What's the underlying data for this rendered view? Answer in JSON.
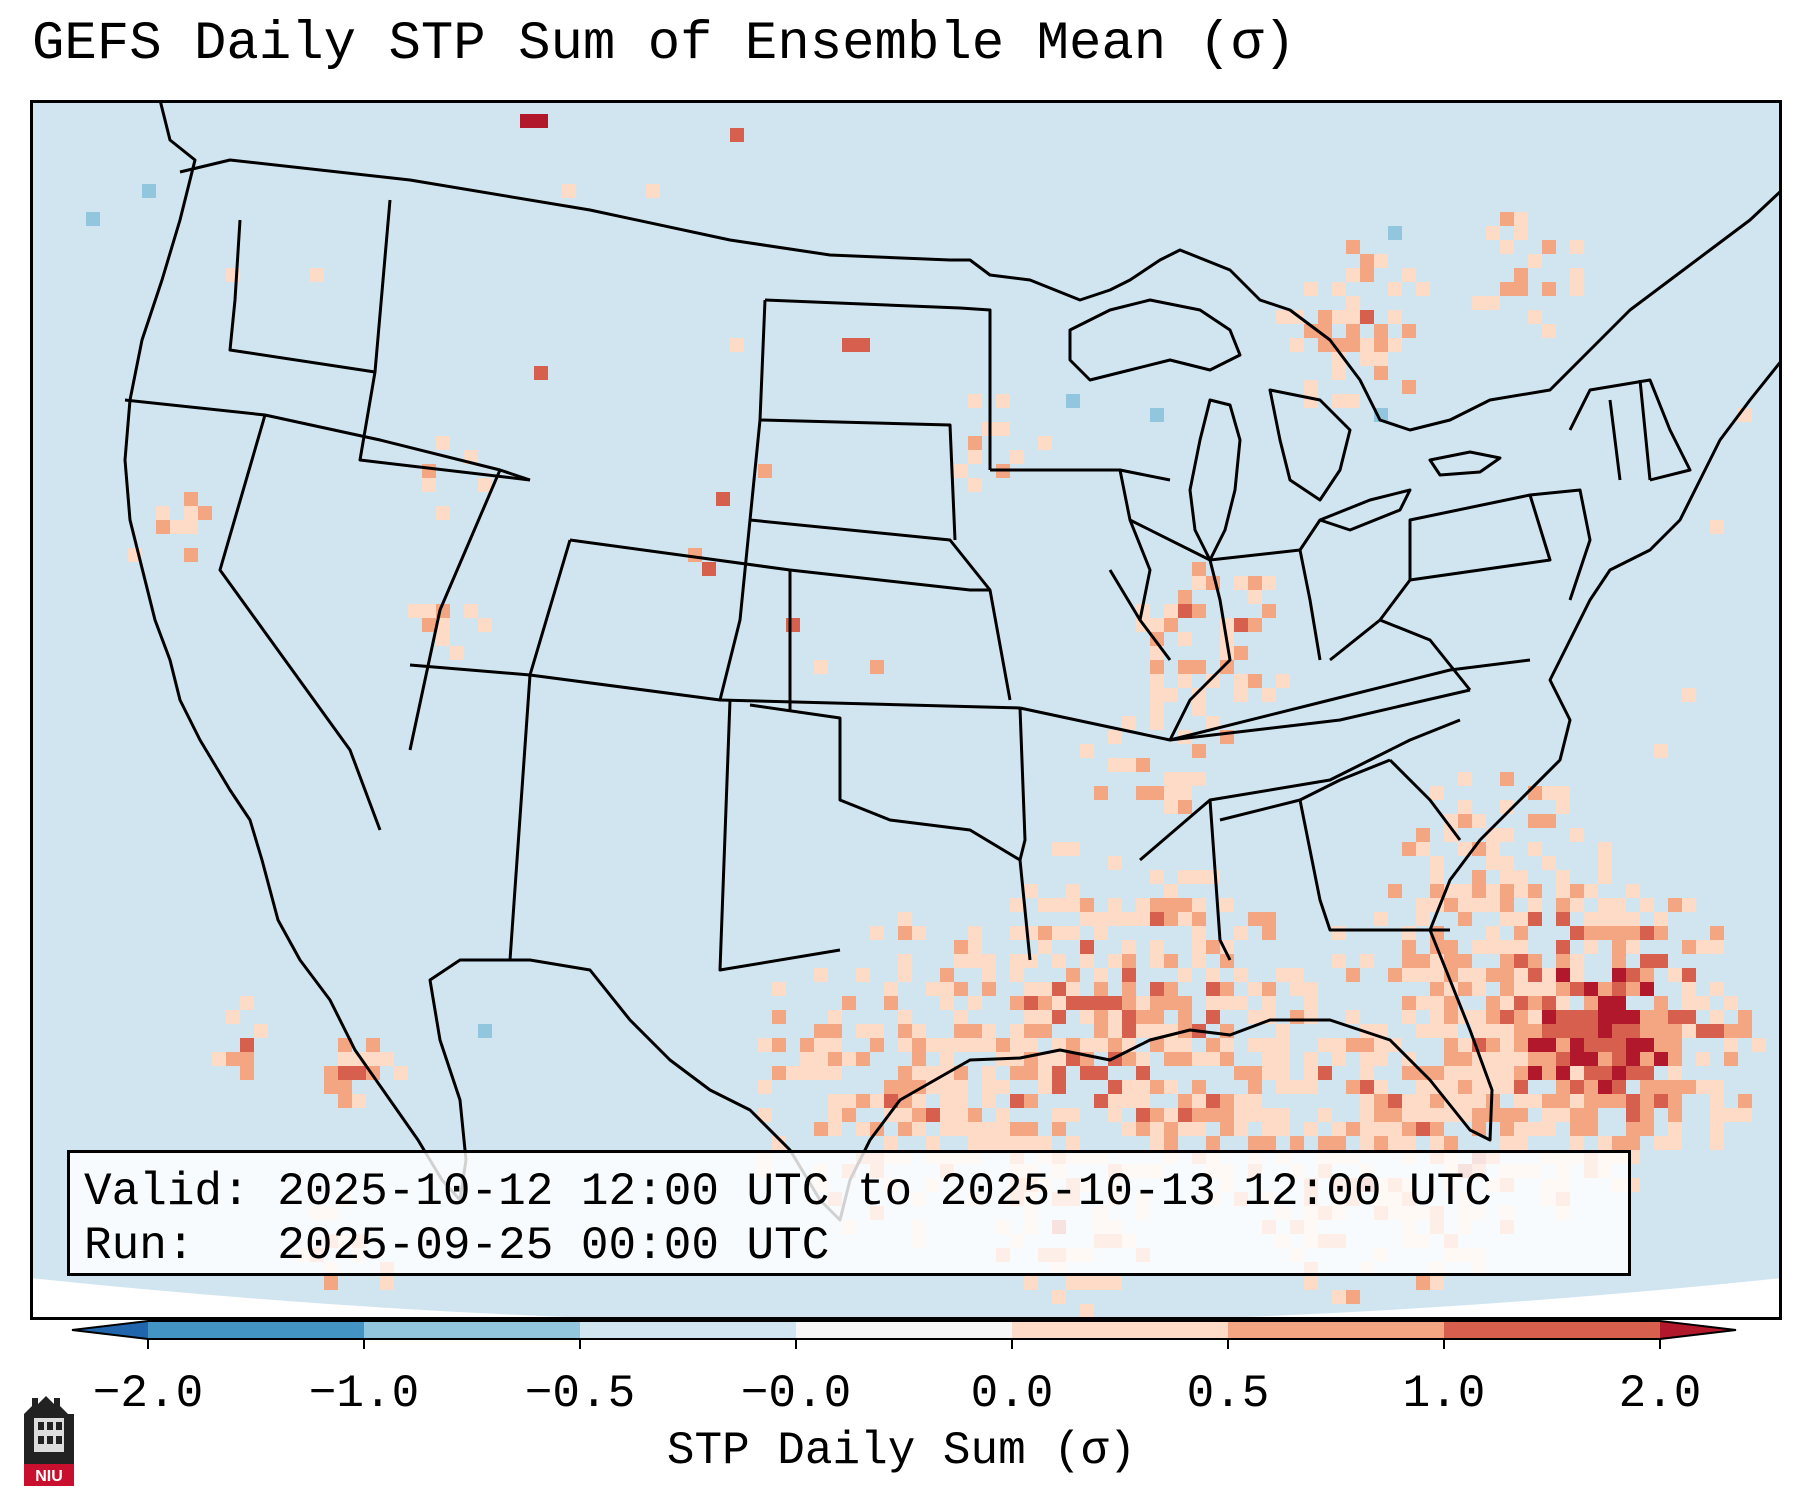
{
  "title": "GEFS Daily STP Sum of Ensemble Mean (σ)",
  "info": {
    "valid_label": "Valid:",
    "valid_value": "2025-10-12 12:00 UTC to 2025-10-13 12:00 UTC",
    "run_label": "Run:",
    "run_value": "2025-09-25 00:00 UTC"
  },
  "colorbar": {
    "label": "STP Daily Sum (σ)",
    "ticks": [
      "−2.0",
      "−1.0",
      "−0.5",
      "−0.0",
      "0.0",
      "0.5",
      "1.0",
      "2.0"
    ],
    "colors": [
      "#4393c3",
      "#92c5de",
      "#d1e5f0",
      "#f7f7f7",
      "#fddbc7",
      "#f4a582",
      "#d6604d"
    ],
    "extend_low": "#2166ac",
    "extend_high": "#b2182b"
  },
  "map": {
    "background": "#d1e5f0",
    "region": "Contiguous United States"
  },
  "logo": {
    "text": "NIU"
  }
}
